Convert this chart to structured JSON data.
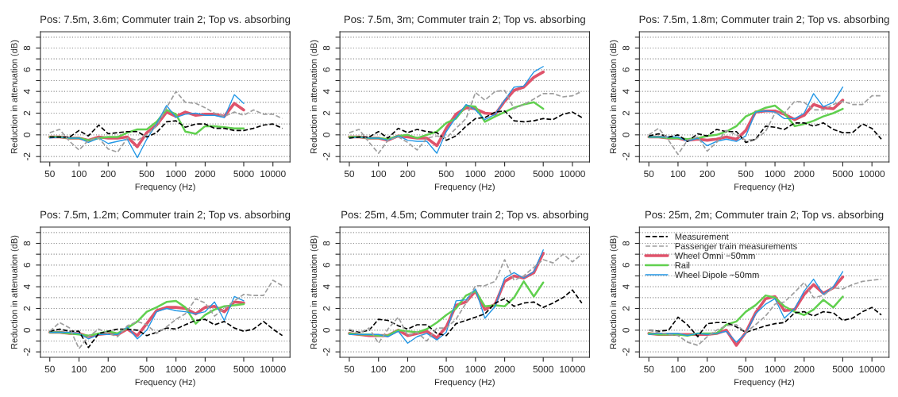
{
  "chart_data": [
    {
      "type": "line",
      "title": "Pos: 7.5m, 3.6m; Commuter train 2; Top vs. absorbing",
      "xlabel": "Frequency (Hz)",
      "ylabel": "Reduction in attenuation (dB)",
      "log": "x",
      "grid": "y",
      "xlim": [
        40,
        15000
      ],
      "ylim": [
        -2.5,
        9.5
      ],
      "xticks": [
        50,
        100,
        200,
        500,
        1000,
        2000,
        5000,
        10000
      ],
      "yticks": [
        -2,
        {
          "value": -1,
          "label": null
        },
        0,
        {
          "value": 1,
          "label": null
        },
        2,
        {
          "value": 3,
          "label": null
        },
        4,
        {
          "value": 5,
          "label": null
        },
        6,
        {
          "value": 7,
          "label": null
        },
        8,
        {
          "value": 9,
          "label": null
        }
      ],
      "x": [
        50,
        63,
        80,
        100,
        125,
        160,
        200,
        250,
        315,
        400,
        500,
        630,
        800,
        1000,
        1250,
        1600,
        2000,
        2500,
        3150,
        4000,
        5000,
        6300,
        8000,
        10000,
        12500
      ],
      "series": [
        {
          "color": "#000000",
          "line_style": "dashed",
          "values": [
            -0.2,
            -0.2,
            -0.2,
            0.4,
            -0.1,
            0.9,
            0.1,
            0.2,
            0.3,
            0.3,
            -0.2,
            0.2,
            1.2,
            1.3,
            0.7,
            1.0,
            1.0,
            0.6,
            0.6,
            0.4,
            0.4,
            0.6,
            0.9,
            1.0,
            0.6
          ]
        },
        {
          "color": "#9e9e9e",
          "line_style": "dashed",
          "values": [
            0.2,
            0.5,
            -0.6,
            -1.4,
            -0.5,
            -0.3,
            -1.3,
            -1.6,
            -0.3,
            -0.5,
            0.0,
            0.8,
            2.5,
            4.0,
            3.0,
            2.9,
            2.5,
            2.0,
            1.7,
            2.1,
            1.8,
            2.3,
            1.9,
            1.9,
            1.5
          ]
        },
        {
          "color": "#df536b",
          "line_style": "solid",
          "values": [
            -0.2,
            -0.2,
            -0.3,
            -0.3,
            -0.5,
            -0.2,
            -0.3,
            -0.3,
            -0.2,
            -1.1,
            0.2,
            0.9,
            2.1,
            1.7,
            2.1,
            1.8,
            1.9,
            1.9,
            1.7,
            2.9,
            2.3,
            null,
            null,
            null,
            null
          ]
        },
        {
          "color": "#61d04f",
          "line_style": "solid",
          "values": [
            -0.2,
            -0.2,
            -0.3,
            -0.3,
            -0.5,
            -0.3,
            -0.2,
            -0.2,
            0.2,
            0.5,
            0.5,
            1.2,
            2.3,
            1.9,
            0.3,
            0.1,
            0.8,
            0.8,
            0.7,
            0.6,
            0.6,
            null,
            null,
            null,
            null
          ]
        },
        {
          "color": "#2297e6",
          "line_style": "solid",
          "values": [
            -0.3,
            -0.2,
            -0.3,
            -0.3,
            -0.7,
            -0.3,
            -0.8,
            -0.6,
            -0.4,
            -2.1,
            -0.4,
            1.0,
            2.7,
            1.6,
            1.9,
            2.0,
            1.8,
            1.8,
            1.6,
            3.7,
            2.9,
            null,
            null,
            null,
            null
          ]
        }
      ]
    },
    {
      "type": "line",
      "title": "Pos: 7.5m, 3m; Commuter train 2; Top vs. absorbing",
      "xlabel": "Frequency (Hz)",
      "ylabel": "Reduction in attenuation (dB)",
      "log": "x",
      "grid": "y",
      "xlim": [
        40,
        15000
      ],
      "ylim": [
        -2.5,
        9.5
      ],
      "xticks": [
        50,
        100,
        200,
        500,
        1000,
        2000,
        5000,
        10000
      ],
      "yticks": [
        -2,
        {
          "value": -1,
          "label": null
        },
        0,
        {
          "value": 1,
          "label": null
        },
        2,
        {
          "value": 3,
          "label": null
        },
        4,
        {
          "value": 5,
          "label": null
        },
        6,
        {
          "value": 7,
          "label": null
        },
        8,
        {
          "value": 9,
          "label": null
        }
      ],
      "x": [
        50,
        63,
        80,
        100,
        125,
        160,
        200,
        250,
        315,
        400,
        500,
        630,
        800,
        1000,
        1250,
        1600,
        2000,
        2500,
        3150,
        4000,
        5000,
        6300,
        8000,
        10000,
        12500
      ],
      "series": [
        {
          "color": "#000000",
          "line_style": "dashed",
          "values": [
            -0.3,
            -0.2,
            -0.2,
            0.3,
            -0.3,
            0.6,
            0.2,
            0.5,
            0.3,
            0.2,
            -0.5,
            -0.1,
            0.8,
            1.5,
            1.6,
            2.1,
            2.2,
            1.3,
            1.2,
            1.3,
            1.5,
            1.4,
            1.9,
            2.1,
            1.6
          ]
        },
        {
          "color": "#9e9e9e",
          "line_style": "dashed",
          "values": [
            0.2,
            0.5,
            -0.7,
            -1.7,
            -0.5,
            -0.2,
            -0.7,
            -1.4,
            -0.3,
            -0.1,
            -0.3,
            0.6,
            1.5,
            3.9,
            3.2,
            4.0,
            4.1,
            2.4,
            2.8,
            3.3,
            3.8,
            3.8,
            3.5,
            3.6,
            4.0
          ]
        },
        {
          "color": "#df536b",
          "line_style": "solid",
          "values": [
            -0.2,
            -0.2,
            -0.3,
            -0.3,
            -0.5,
            -0.1,
            -0.2,
            -0.3,
            -0.3,
            -1.0,
            0.6,
            1.9,
            2.5,
            2.4,
            2.0,
            1.9,
            3.1,
            4.1,
            4.4,
            5.3,
            5.8,
            null,
            null,
            null,
            null
          ]
        },
        {
          "color": "#61d04f",
          "line_style": "solid",
          "values": [
            -0.2,
            -0.2,
            -0.3,
            -0.3,
            -0.4,
            -0.1,
            0.0,
            -0.3,
            0.0,
            0.3,
            1.1,
            1.5,
            2.7,
            2.6,
            1.2,
            1.7,
            2.1,
            2.5,
            2.8,
            3.0,
            2.4,
            null,
            null,
            null,
            null
          ]
        },
        {
          "color": "#2297e6",
          "line_style": "solid",
          "values": [
            -0.3,
            -0.2,
            -0.3,
            -0.3,
            -0.5,
            -0.1,
            -0.5,
            -0.6,
            -0.6,
            -1.7,
            0.3,
            1.6,
            2.8,
            2.3,
            1.4,
            1.9,
            3.2,
            4.4,
            4.5,
            5.8,
            6.3,
            null,
            null,
            null,
            null
          ]
        }
      ]
    },
    {
      "type": "line",
      "title": "Pos: 7.5m, 1.8m; Commuter train 2; Top vs. absorbing",
      "xlabel": "Frequency (Hz)",
      "ylabel": "Reduction in attenuation (dB)",
      "log": "x",
      "grid": "y",
      "xlim": [
        40,
        15000
      ],
      "ylim": [
        -2.5,
        9.5
      ],
      "xticks": [
        50,
        100,
        200,
        500,
        1000,
        2000,
        5000,
        10000
      ],
      "yticks": [
        -2,
        {
          "value": -1,
          "label": null
        },
        0,
        {
          "value": 1,
          "label": null
        },
        2,
        {
          "value": 3,
          "label": null
        },
        4,
        {
          "value": 5,
          "label": null
        },
        6,
        {
          "value": 7,
          "label": null
        },
        8,
        {
          "value": 9,
          "label": null
        }
      ],
      "x": [
        50,
        63,
        80,
        100,
        125,
        160,
        200,
        250,
        315,
        400,
        500,
        630,
        800,
        1000,
        1250,
        1600,
        2000,
        2500,
        3150,
        4000,
        5000,
        6300,
        8000,
        10000,
        12500
      ],
      "series": [
        {
          "color": "#000000",
          "line_style": "dashed",
          "values": [
            -0.1,
            0.1,
            -0.2,
            0.0,
            -0.6,
            0.1,
            -0.1,
            0.5,
            0.3,
            0.3,
            -0.7,
            -0.4,
            0.8,
            0.7,
            0.5,
            1.1,
            1.1,
            0.8,
            1.1,
            0.5,
            0.2,
            0.2,
            1.0,
            0.6,
            -0.4
          ]
        },
        {
          "color": "#9e9e9e",
          "line_style": "dashed",
          "values": [
            0.0,
            0.6,
            -0.5,
            -1.8,
            -0.5,
            -0.2,
            -1.5,
            -0.7,
            0.4,
            0.0,
            -0.5,
            -0.4,
            0.3,
            2.0,
            2.0,
            3.1,
            3.0,
            2.3,
            2.3,
            2.8,
            3.1,
            2.8,
            2.8,
            3.6,
            3.6
          ]
        },
        {
          "color": "#df536b",
          "line_style": "solid",
          "values": [
            -0.2,
            -0.2,
            -0.3,
            -0.3,
            -0.5,
            -0.4,
            -0.5,
            -0.4,
            -0.2,
            -0.4,
            0.4,
            2.1,
            2.2,
            2.2,
            1.9,
            1.4,
            1.8,
            2.8,
            2.5,
            2.4,
            3.2,
            null,
            null,
            null,
            null
          ]
        },
        {
          "color": "#61d04f",
          "line_style": "solid",
          "values": [
            -0.2,
            -0.2,
            -0.3,
            -0.3,
            -0.4,
            -0.3,
            -0.1,
            0.0,
            0.3,
            0.8,
            1.7,
            2.1,
            2.5,
            2.7,
            2.0,
            0.8,
            1.0,
            1.3,
            1.7,
            2.0,
            2.4,
            null,
            null,
            null,
            null
          ]
        },
        {
          "color": "#2297e6",
          "line_style": "solid",
          "values": [
            -0.2,
            -0.2,
            -0.2,
            -0.2,
            -0.6,
            -0.3,
            -1.0,
            -0.6,
            -0.4,
            -0.6,
            -0.1,
            2.1,
            2.2,
            2.1,
            1.5,
            1.5,
            2.0,
            3.8,
            2.6,
            3.0,
            4.4,
            null,
            null,
            null,
            null
          ]
        }
      ]
    },
    {
      "type": "line",
      "title": "Pos: 7.5m, 1.2m; Commuter train 2; Top vs. absorbing",
      "xlabel": "Frequency (Hz)",
      "ylabel": "Reduction in attenuation (dB)",
      "log": "x",
      "grid": "y",
      "xlim": [
        40,
        15000
      ],
      "ylim": [
        -2.5,
        9.5
      ],
      "xticks": [
        50,
        100,
        200,
        500,
        1000,
        2000,
        5000,
        10000
      ],
      "yticks": [
        -2,
        {
          "value": -1,
          "label": null
        },
        0,
        {
          "value": 1,
          "label": null
        },
        2,
        {
          "value": 3,
          "label": null
        },
        4,
        {
          "value": 5,
          "label": null
        },
        6,
        {
          "value": 7,
          "label": null
        },
        8,
        {
          "value": 9,
          "label": null
        }
      ],
      "x": [
        50,
        63,
        80,
        100,
        125,
        160,
        200,
        250,
        315,
        400,
        500,
        630,
        800,
        1000,
        1250,
        1600,
        2000,
        2500,
        3150,
        4000,
        5000,
        6300,
        8000,
        10000,
        12500
      ],
      "series": [
        {
          "color": "#000000",
          "line_style": "dashed",
          "values": [
            -0.1,
            0.1,
            -0.1,
            -0.1,
            -1.6,
            -0.3,
            -0.1,
            0.1,
            0.1,
            0.0,
            -0.5,
            -0.2,
            0.2,
            0.1,
            0.5,
            0.9,
            1.0,
            0.5,
            0.8,
            0.2,
            -0.1,
            0.1,
            0.8,
            0.1,
            -0.5
          ]
        },
        {
          "color": "#9e9e9e",
          "line_style": "dashed",
          "values": [
            -0.1,
            0.7,
            0.2,
            -1.7,
            -0.6,
            0.1,
            -0.3,
            -0.6,
            0.4,
            0.8,
            0.5,
            -0.3,
            0.3,
            1.0,
            1.5,
            2.9,
            2.5,
            1.3,
            2.0,
            2.7,
            3.3,
            3.2,
            3.2,
            4.6,
            4.1
          ]
        },
        {
          "color": "#df536b",
          "line_style": "solid",
          "values": [
            -0.2,
            -0.2,
            -0.3,
            -0.3,
            -0.6,
            -0.4,
            -0.3,
            -0.4,
            0.1,
            -0.5,
            0.6,
            1.8,
            2.1,
            2.1,
            2.0,
            1.5,
            2.1,
            2.2,
            1.7,
            2.6,
            2.5,
            null,
            null,
            null,
            null
          ]
        },
        {
          "color": "#61d04f",
          "line_style": "solid",
          "values": [
            -0.2,
            -0.2,
            -0.3,
            -0.4,
            -0.5,
            -0.3,
            -0.1,
            -0.3,
            0.2,
            0.8,
            1.7,
            2.1,
            2.6,
            2.7,
            2.1,
            0.6,
            1.4,
            1.9,
            2.2,
            2.3,
            2.4,
            null,
            null,
            null,
            null
          ]
        },
        {
          "color": "#2297e6",
          "line_style": "solid",
          "values": [
            -0.2,
            -0.2,
            -0.2,
            -0.3,
            -0.8,
            -0.4,
            -0.4,
            -0.4,
            0.3,
            -0.8,
            0.0,
            1.7,
            2.0,
            1.8,
            1.7,
            1.5,
            1.7,
            2.6,
            0.9,
            3.1,
            2.7,
            null,
            null,
            null,
            null
          ]
        }
      ]
    },
    {
      "type": "line",
      "title": "Pos: 25m, 4.5m; Commuter train 2; Top vs. absorbing",
      "xlabel": "Frequency (Hz)",
      "ylabel": "Reduction in attenuation (dB)",
      "log": "x",
      "grid": "y",
      "xlim": [
        40,
        15000
      ],
      "ylim": [
        -2.5,
        9.5
      ],
      "xticks": [
        50,
        100,
        200,
        500,
        1000,
        2000,
        5000,
        10000
      ],
      "yticks": [
        -2,
        {
          "value": -1,
          "label": null
        },
        0,
        {
          "value": 1,
          "label": null
        },
        2,
        {
          "value": 3,
          "label": null
        },
        4,
        {
          "value": 5,
          "label": null
        },
        6,
        {
          "value": 7,
          "label": null
        },
        8,
        {
          "value": 9,
          "label": null
        }
      ],
      "x": [
        50,
        63,
        80,
        100,
        125,
        160,
        200,
        250,
        315,
        400,
        500,
        630,
        800,
        1000,
        1250,
        1600,
        2000,
        2500,
        3150,
        4000,
        5000,
        6300,
        8000,
        10000,
        12500
      ],
      "series": [
        {
          "color": "#000000",
          "line_style": "dashed",
          "values": [
            0.0,
            -0.2,
            0.0,
            1.0,
            0.9,
            0.4,
            0.1,
            0.5,
            0.5,
            -0.3,
            -0.5,
            0.6,
            0.9,
            1.2,
            1.5,
            2.5,
            2.9,
            2.2,
            2.5,
            2.6,
            2.1,
            2.5,
            3.0,
            3.7,
            2.5
          ]
        },
        {
          "color": "#9e9e9e",
          "line_style": "dashed",
          "values": [
            0.1,
            -0.3,
            0.2,
            -1.2,
            0.1,
            1.2,
            -0.5,
            -0.2,
            -1.0,
            0.2,
            0.2,
            1.0,
            2.5,
            4.1,
            4.1,
            4.5,
            6.5,
            4.6,
            5.0,
            5.8,
            6.5,
            6.2,
            7.0,
            6.3,
            7.0
          ]
        },
        {
          "color": "#df536b",
          "line_style": "solid",
          "values": [
            -0.3,
            -0.4,
            -0.5,
            -0.5,
            -0.5,
            0.0,
            -0.5,
            -0.3,
            -0.1,
            -0.7,
            0.3,
            2.3,
            2.6,
            3.6,
            1.9,
            2.4,
            4.5,
            5.0,
            4.8,
            5.3,
            7.1,
            null,
            null,
            null,
            null
          ]
        },
        {
          "color": "#61d04f",
          "line_style": "solid",
          "values": [
            -0.3,
            -0.4,
            -0.4,
            -0.5,
            -0.5,
            0.0,
            -0.1,
            -0.2,
            0.1,
            0.7,
            1.4,
            2.0,
            3.2,
            3.6,
            2.2,
            2.3,
            2.2,
            3.0,
            4.5,
            3.1,
            4.4,
            null,
            null,
            null,
            null
          ]
        },
        {
          "color": "#2297e6",
          "line_style": "solid",
          "values": [
            -0.4,
            -0.4,
            -0.4,
            -0.4,
            -0.6,
            -0.1,
            -1.2,
            -0.6,
            -0.3,
            -0.9,
            -0.2,
            2.7,
            2.8,
            3.8,
            1.1,
            2.2,
            4.8,
            5.3,
            4.8,
            5.4,
            7.4,
            null,
            null,
            null,
            null
          ]
        }
      ]
    },
    {
      "type": "line",
      "title": "Pos: 25m, 2m; Commuter train 2; Top vs. absorbing",
      "xlabel": "Frequency (Hz)",
      "ylabel": "Reduction in attenuation (dB)",
      "log": "x",
      "grid": "y",
      "legend": "top left",
      "xlim": [
        40,
        15000
      ],
      "ylim": [
        -2.5,
        9.5
      ],
      "xticks": [
        50,
        100,
        200,
        500,
        1000,
        2000,
        5000,
        10000
      ],
      "yticks": [
        -2,
        {
          "value": -1,
          "label": null
        },
        0,
        {
          "value": 1,
          "label": null
        },
        2,
        {
          "value": 3,
          "label": null
        },
        4,
        {
          "value": 5,
          "label": null
        },
        6,
        {
          "value": 7,
          "label": null
        },
        8,
        {
          "value": 9,
          "label": null
        }
      ],
      "x": [
        50,
        63,
        80,
        100,
        125,
        160,
        200,
        250,
        315,
        400,
        500,
        630,
        800,
        1000,
        1250,
        1600,
        2000,
        2500,
        3150,
        4000,
        5000,
        6300,
        8000,
        10000,
        12500
      ],
      "series": [
        {
          "name": "Measurement",
          "color": "#000000",
          "line_style": "dashed",
          "values": [
            0.0,
            -0.1,
            0.0,
            1.2,
            0.5,
            -0.6,
            0.6,
            0.7,
            0.7,
            0.3,
            -0.2,
            0.1,
            0.4,
            0.6,
            0.7,
            1.6,
            1.7,
            1.3,
            1.7,
            1.6,
            0.9,
            1.1,
            1.7,
            2.1,
            1.4
          ]
        },
        {
          "name": "Passenger train measurements",
          "color": "#9e9e9e",
          "line_style": "dashed",
          "values": [
            0.0,
            -0.2,
            -0.4,
            -0.5,
            -1.1,
            -1.4,
            -0.6,
            0.0,
            0.4,
            0.5,
            -0.2,
            0.5,
            1.3,
            2.4,
            2.6,
            3.5,
            4.4,
            3.0,
            3.2,
            3.9,
            3.8,
            4.2,
            4.5,
            4.6,
            4.7
          ]
        },
        {
          "name": "Wheel Omni −50mm",
          "color": "#df536b",
          "line_style": "solid",
          "values": [
            -0.3,
            -0.4,
            -0.4,
            -0.4,
            -0.4,
            -0.4,
            -0.4,
            -0.3,
            0.0,
            -1.4,
            -0.2,
            1.6,
            2.9,
            3.1,
            1.8,
            1.9,
            3.3,
            4.2,
            3.4,
            3.9,
            4.9,
            null,
            null,
            null,
            null
          ]
        },
        {
          "name": "Rail",
          "color": "#61d04f",
          "line_style": "solid",
          "values": [
            -0.3,
            -0.4,
            -0.4,
            -0.4,
            -0.5,
            -0.3,
            -0.3,
            -0.3,
            0.5,
            0.8,
            1.7,
            2.3,
            3.2,
            3.0,
            2.2,
            1.7,
            1.4,
            1.9,
            2.8,
            2.1,
            3.1,
            null,
            null,
            null,
            null
          ]
        },
        {
          "name": "Wheel Dipole −50mm",
          "color": "#2297e6",
          "line_style": "solid",
          "values": [
            -0.4,
            -0.3,
            -0.3,
            -0.3,
            -0.5,
            -0.3,
            -0.4,
            -0.3,
            -0.1,
            -1.1,
            -0.3,
            1.5,
            2.4,
            2.9,
            1.1,
            2.0,
            3.6,
            4.7,
            3.3,
            4.0,
            5.4,
            null,
            null,
            null,
            null
          ]
        }
      ]
    }
  ]
}
